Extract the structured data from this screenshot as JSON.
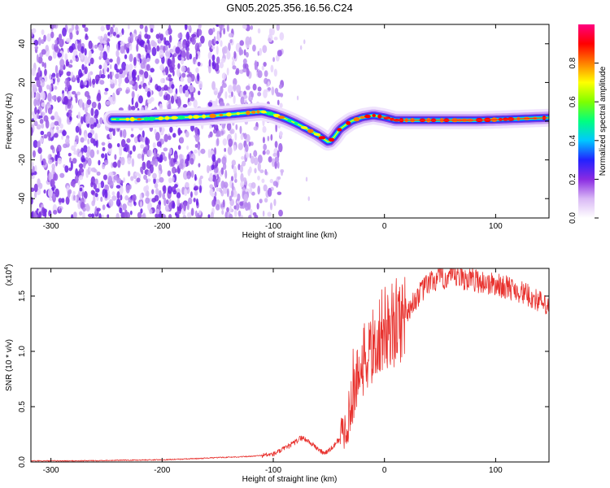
{
  "title": "GN05.2025.356.16.56.C24",
  "chart_data": [
    {
      "type": "heatmap",
      "name": "spectrogram",
      "xlabel": "Height of straight line (km)",
      "ylabel": "Frequency (Hz)",
      "xlim": [
        -318,
        148
      ],
      "ylim": [
        -50,
        50
      ],
      "xticks": [
        -300,
        -200,
        -100,
        0,
        100
      ],
      "xtick_labels": [
        "-300",
        "-200",
        "-100",
        "0",
        "100"
      ],
      "yticks": [
        -40,
        -20,
        0,
        20,
        40
      ],
      "ytick_labels": [
        "-40",
        "-20",
        "0",
        "20",
        "40"
      ],
      "noise_region_x": [
        -318,
        -100
      ],
      "ridge": {
        "x": [
          -245,
          -220,
          -200,
          -180,
          -160,
          -140,
          -120,
          -110,
          -100,
          -90,
          -80,
          -70,
          -60,
          -50,
          -45,
          -40,
          -30,
          -20,
          -10,
          0,
          10,
          20,
          40,
          60,
          80,
          100,
          120,
          148
        ],
        "freq": [
          1,
          1,
          1.5,
          2,
          2.5,
          3.5,
          4.5,
          5,
          3.5,
          1.5,
          -1,
          -4,
          -7,
          -11,
          -8,
          -4,
          0,
          2,
          3,
          2,
          0.5,
          0.5,
          0.5,
          0.5,
          0.5,
          0.8,
          1.2,
          1.8
        ]
      },
      "colorbar": {
        "label": "Normalized spectral amplitude",
        "range": [
          0,
          1
        ],
        "ticks": [
          0.0,
          0.2,
          0.4,
          0.6,
          0.8
        ],
        "tick_labels": [
          "0.0",
          "0.2",
          "0.4",
          "0.6",
          "0.8"
        ],
        "colors": [
          "#ffffff",
          "#d9b8f5",
          "#8a2be2",
          "#2222ff",
          "#00c8ff",
          "#00ff80",
          "#7fff00",
          "#ffff00",
          "#ff8000",
          "#ff0000",
          "#ff0080"
        ]
      }
    },
    {
      "type": "line",
      "name": "snr",
      "xlabel": "Height of straight line (km)",
      "ylabel": "SNR (10 * v/v)",
      "y_multiplier": "(x10",
      "y_multiplier_exp": "4",
      "y_multiplier_close": ")",
      "xlim": [
        -318,
        148
      ],
      "ylim": [
        0,
        1.75
      ],
      "xticks": [
        -300,
        -200,
        -100,
        0,
        100
      ],
      "xtick_labels": [
        "-300",
        "-200",
        "-100",
        "0",
        "100"
      ],
      "yticks": [
        0.0,
        0.5,
        1.0,
        1.5
      ],
      "ytick_labels": [
        "0.0",
        "0.5",
        "1.0",
        "1.5"
      ],
      "color": "#e8322e",
      "x": [
        -318,
        -280,
        -240,
        -200,
        -170,
        -150,
        -120,
        -100,
        -90,
        -80,
        -75,
        -70,
        -60,
        -55,
        -50,
        -45,
        -40,
        -35,
        -30,
        -25,
        -20,
        -15,
        -10,
        -5,
        0,
        10,
        20,
        30,
        40,
        50,
        60,
        70,
        80,
        90,
        100,
        110,
        120,
        130,
        140,
        148
      ],
      "y": [
        0.01,
        0.01,
        0.015,
        0.02,
        0.03,
        0.04,
        0.05,
        0.07,
        0.12,
        0.18,
        0.22,
        0.2,
        0.12,
        0.08,
        0.1,
        0.15,
        0.22,
        0.3,
        0.5,
        0.75,
        0.9,
        0.95,
        1.05,
        1.15,
        1.2,
        1.25,
        1.35,
        1.5,
        1.62,
        1.66,
        1.67,
        1.66,
        1.65,
        1.62,
        1.6,
        1.58,
        1.55,
        1.5,
        1.45,
        1.38
      ]
    }
  ]
}
